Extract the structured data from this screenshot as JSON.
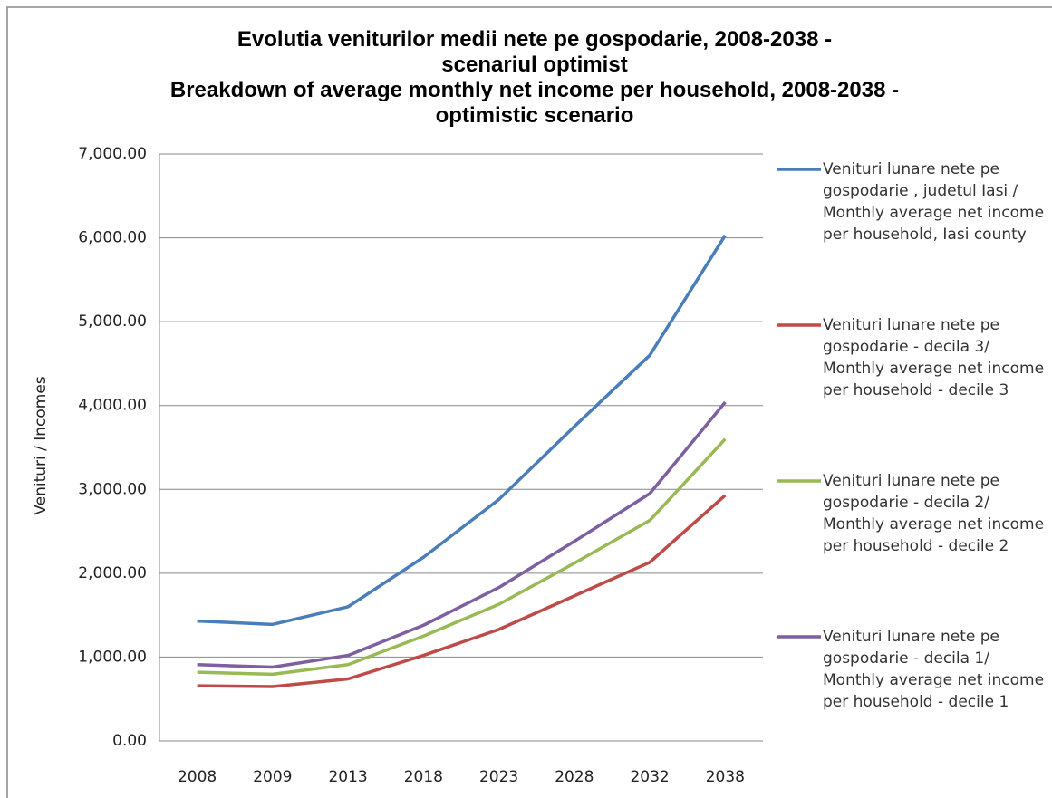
{
  "chart_data": {
    "type": "line",
    "title": "Evolutia  veniturilor medii nete pe gospodarie, 2008-2038  - scenariul optimist",
    "subtitle": "Breakdown of average monthly net income per household, 2008-2038 - optimistic scenario",
    "y_label": "Venituri / Incomes",
    "categories": [
      "2008",
      "2009",
      "2013",
      "2018",
      "2023",
      "2028",
      "2032",
      "2038"
    ],
    "series": [
      {
        "name": "Venituri lunare nete pe gospodarie ,  judetul Iasi / Monthly average net income per household, Iasi county",
        "color": "#4a7ebb",
        "values": [
          1430,
          1390,
          1600,
          2190,
          2880,
          3750,
          4600,
          6030
        ]
      },
      {
        "name": "Venituri lunare nete pe gospodarie - decila 3/ Monthly average net income per household - decile 3",
        "color": "#be4b48",
        "values": [
          658,
          648,
          740,
          1020,
          1330,
          1730,
          2130,
          2930
        ]
      },
      {
        "name": "Venituri lunare nete pe gospodarie - decila 2/ Monthly average net income per household - decile 2",
        "color": "#98b954",
        "values": [
          820,
          795,
          910,
          1250,
          1630,
          2120,
          2630,
          3600
        ]
      },
      {
        "name": "Venituri lunare nete pe gospodarie - decila 1/ Monthly average net income per household - decile 1",
        "color": "#7d60a0",
        "values": [
          910,
          880,
          1020,
          1380,
          1830,
          2380,
          2950,
          4040
        ]
      }
    ],
    "ylim": [
      0,
      7000
    ],
    "yticks": [
      {
        "value": 0,
        "label": "0.00"
      },
      {
        "value": 1000,
        "label": "1,000.00"
      },
      {
        "value": 2000,
        "label": "2,000.00"
      },
      {
        "value": 3000,
        "label": "3,000.00"
      },
      {
        "value": 4000,
        "label": "4,000.00"
      },
      {
        "value": 5000,
        "label": "5,000.00"
      },
      {
        "value": 6000,
        "label": "6,000.00"
      },
      {
        "value": 7000,
        "label": "7,000.00"
      }
    ],
    "grid": true,
    "legend": "right"
  }
}
